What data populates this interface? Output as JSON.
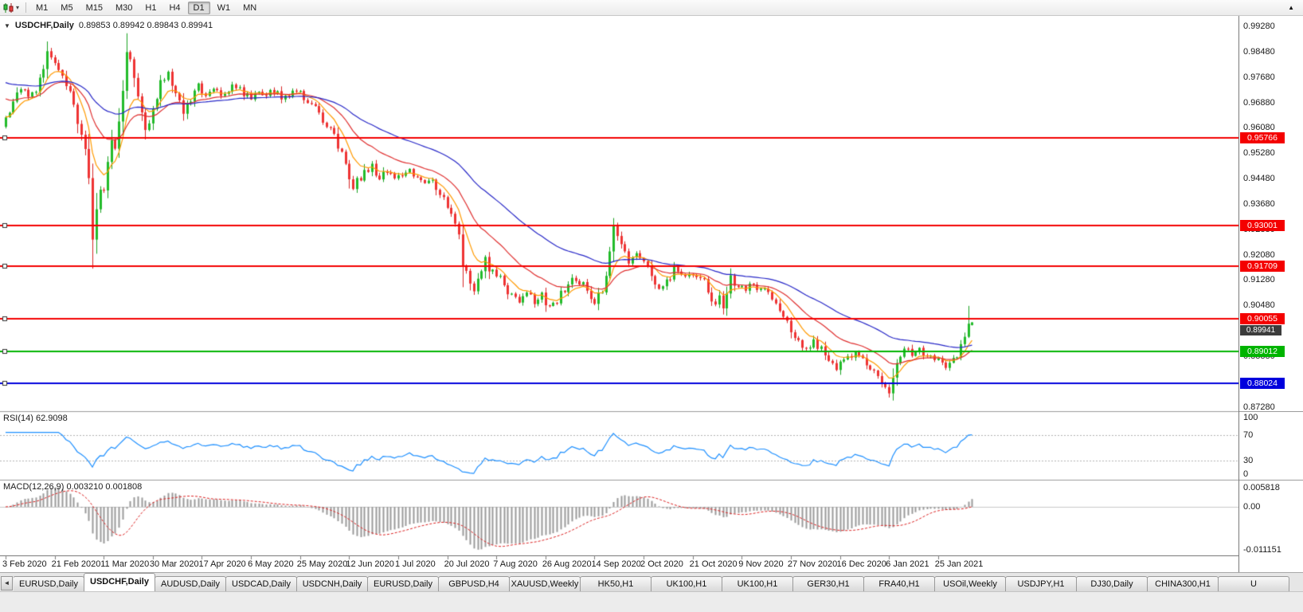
{
  "toolbar": {
    "timeframes": [
      "M1",
      "M5",
      "M15",
      "M30",
      "H1",
      "H4",
      "D1",
      "W1",
      "MN"
    ],
    "active_timeframe": "D1",
    "chart_type_caret": "▾",
    "overflow_icon": "▲"
  },
  "chart": {
    "title": "USDCHF,Daily",
    "ohlc_text": "0.89853 0.89942 0.89843 0.89941",
    "open": "0.89853",
    "high": "0.89942",
    "low": "0.89843",
    "close": "0.89941",
    "collapse_icon": "▼"
  },
  "price_axis": {
    "labels": [
      "0.99280",
      "0.98480",
      "0.97680",
      "0.96880",
      "0.96080",
      "0.95280",
      "0.94480",
      "0.93680",
      "0.92880",
      "0.92080",
      "0.91280",
      "0.90480",
      "0.89680",
      "0.88880",
      "0.88080",
      "0.87280"
    ]
  },
  "hlines": [
    {
      "label": "0.95766",
      "price": 0.95766,
      "color": "#f40000",
      "role": "resistance"
    },
    {
      "label": "0.93001",
      "price": 0.93001,
      "color": "#f40000",
      "role": "resistance"
    },
    {
      "label": "0.91709",
      "price": 0.91709,
      "color": "#f40000",
      "role": "resistance"
    },
    {
      "label": "0.90055",
      "price": 0.90055,
      "color": "#f40000",
      "role": "resistance"
    },
    {
      "label": "0.89012",
      "price": 0.89012,
      "color": "#00b400",
      "role": "support"
    },
    {
      "label": "0.88024",
      "price": 0.88024,
      "color": "#0000dd",
      "role": "support"
    }
  ],
  "bid_tag": {
    "label": "0.89941",
    "price": 0.89941,
    "color": "#3c3c3c"
  },
  "rsi": {
    "label": "RSI(14) 62.9098",
    "period": 14,
    "current": "62.9098",
    "levels": [
      "100",
      "70",
      "30",
      "0"
    ],
    "level_values": [
      100,
      70,
      30,
      0
    ],
    "upper_level": 70,
    "lower_level": 30
  },
  "macd": {
    "label": "MACD(12,26,9) 0.003210 0.001808",
    "current": "0.003210",
    "signal_current": "0.001808",
    "axis_labels": [
      "0.005818",
      "0.00",
      "-0.011151"
    ],
    "axis_values": [
      0.005818,
      0,
      -0.011151
    ]
  },
  "date_axis": {
    "labels": [
      "3 Feb 2020",
      "21 Feb 2020",
      "11 Mar 2020",
      "30 Mar 2020",
      "17 Apr 2020",
      "6 May 2020",
      "25 May 2020",
      "12 Jun 2020",
      "1 Jul 2020",
      "20 Jul 2020",
      "7 Aug 2020",
      "26 Aug 2020",
      "14 Sep 2020",
      "2 Oct 2020",
      "21 Oct 2020",
      "9 Nov 2020",
      "27 Nov 2020",
      "16 Dec 2020",
      "6 Jan 2021",
      "25 Jan 2021"
    ]
  },
  "tab_bar": {
    "scroll_icon": "◄",
    "active_index": 1,
    "tabs": [
      "EURUSD,Daily",
      "USDCHF,Daily",
      "AUDUSD,Daily",
      "USDCAD,Daily",
      "USDCNH,Daily",
      "EURUSD,Daily",
      "GBPUSD,H4",
      "XAUUSD,Weekly",
      "HK50,H1",
      "UK100,H1",
      "UK100,H1",
      "GER30,H1",
      "FRA40,H1",
      "USOil,Weekly",
      "USDJPY,H1",
      "DJ30,Daily",
      "CHINA300,H1",
      "U"
    ]
  },
  "chart_data": {
    "type": "candlestick",
    "symbol": "USDCHF",
    "timeframe": "Daily",
    "price_top": 0.99406,
    "price_bottom": 0.87239,
    "candle_count": 257,
    "close_anchors": [
      [
        0,
        0.9641
      ],
      [
        2,
        0.969
      ],
      [
        4,
        0.9732
      ],
      [
        6,
        0.971
      ],
      [
        8,
        0.9722
      ],
      [
        10,
        0.979
      ],
      [
        11,
        0.9845
      ],
      [
        13,
        0.981
      ],
      [
        15,
        0.9772
      ],
      [
        17,
        0.9722
      ],
      [
        19,
        0.964
      ],
      [
        21,
        0.956
      ],
      [
        22,
        0.945
      ],
      [
        23,
        0.9265
      ],
      [
        24,
        0.9345
      ],
      [
        25,
        0.943
      ],
      [
        26,
        0.939
      ],
      [
        27,
        0.951
      ],
      [
        28,
        0.9555
      ],
      [
        29,
        0.953
      ],
      [
        30,
        0.9625
      ],
      [
        31,
        0.974
      ],
      [
        32,
        0.9872
      ],
      [
        33,
        0.983
      ],
      [
        34,
        0.976
      ],
      [
        35,
        0.97
      ],
      [
        36,
        0.964
      ],
      [
        37,
        0.9595
      ],
      [
        38,
        0.964
      ],
      [
        39,
        0.9685
      ],
      [
        40,
        0.972
      ],
      [
        41,
        0.975
      ],
      [
        43,
        0.978
      ],
      [
        45,
        0.9718
      ],
      [
        47,
        0.9662
      ],
      [
        49,
        0.97
      ],
      [
        51,
        0.9745
      ],
      [
        53,
        0.9705
      ],
      [
        55,
        0.9735
      ],
      [
        57,
        0.9698
      ],
      [
        59,
        0.9718
      ],
      [
        61,
        0.9745
      ],
      [
        63,
        0.9712
      ],
      [
        65,
        0.97
      ],
      [
        67,
        0.973
      ],
      [
        69,
        0.971
      ],
      [
        71,
        0.9728
      ],
      [
        73,
        0.97
      ],
      [
        75,
        0.9718
      ],
      [
        77,
        0.9735
      ],
      [
        79,
        0.9702
      ],
      [
        81,
        0.9688
      ],
      [
        83,
        0.9655
      ],
      [
        85,
        0.9612
      ],
      [
        87,
        0.958
      ],
      [
        89,
        0.9525
      ],
      [
        91,
        0.9455
      ],
      [
        92,
        0.9408
      ],
      [
        93,
        0.9438
      ],
      [
        95,
        0.9465
      ],
      [
        97,
        0.9485
      ],
      [
        99,
        0.9448
      ],
      [
        101,
        0.9468
      ],
      [
        103,
        0.9452
      ],
      [
        105,
        0.9462
      ],
      [
        107,
        0.9475
      ],
      [
        109,
        0.9458
      ],
      [
        111,
        0.9438
      ],
      [
        113,
        0.9448
      ],
      [
        115,
        0.9402
      ],
      [
        117,
        0.9368
      ],
      [
        119,
        0.9312
      ],
      [
        120,
        0.9262
      ],
      [
        121,
        0.9185
      ],
      [
        122,
        0.915
      ],
      [
        123,
        0.9118
      ],
      [
        124,
        0.9102
      ],
      [
        125,
        0.9142
      ],
      [
        127,
        0.9188
      ],
      [
        128,
        0.9165
      ],
      [
        130,
        0.9148
      ],
      [
        132,
        0.9108
      ],
      [
        134,
        0.9075
      ],
      [
        136,
        0.9058
      ],
      [
        138,
        0.9092
      ],
      [
        140,
        0.9052
      ],
      [
        142,
        0.9078
      ],
      [
        144,
        0.9038
      ],
      [
        146,
        0.9065
      ],
      [
        148,
        0.9098
      ],
      [
        150,
        0.9138
      ],
      [
        152,
        0.9122
      ],
      [
        154,
        0.9095
      ],
      [
        156,
        0.9062
      ],
      [
        158,
        0.9098
      ],
      [
        160,
        0.9205
      ],
      [
        161,
        0.9292
      ],
      [
        162,
        0.926
      ],
      [
        163,
        0.9238
      ],
      [
        165,
        0.9192
      ],
      [
        167,
        0.9218
      ],
      [
        169,
        0.9185
      ],
      [
        171,
        0.9145
      ],
      [
        173,
        0.9088
      ],
      [
        175,
        0.9122
      ],
      [
        177,
        0.9162
      ],
      [
        179,
        0.9142
      ],
      [
        181,
        0.9158
      ],
      [
        183,
        0.9148
      ],
      [
        185,
        0.9118
      ],
      [
        187,
        0.9062
      ],
      [
        188,
        0.9042
      ],
      [
        189,
        0.9068
      ],
      [
        190,
        0.9048
      ],
      [
        191,
        0.9098
      ],
      [
        192,
        0.9132
      ],
      [
        194,
        0.9112
      ],
      [
        196,
        0.9098
      ],
      [
        198,
        0.9115
      ],
      [
        200,
        0.9102
      ],
      [
        202,
        0.9088
      ],
      [
        204,
        0.9062
      ],
      [
        206,
        0.9015
      ],
      [
        208,
        0.8968
      ],
      [
        210,
        0.8938
      ],
      [
        212,
        0.8905
      ],
      [
        214,
        0.8938
      ],
      [
        216,
        0.8908
      ],
      [
        218,
        0.8872
      ],
      [
        220,
        0.8852
      ],
      [
        222,
        0.8868
      ],
      [
        224,
        0.8888
      ],
      [
        226,
        0.8898
      ],
      [
        228,
        0.8868
      ],
      [
        230,
        0.8838
      ],
      [
        232,
        0.8802
      ],
      [
        233,
        0.8788
      ],
      [
        234,
        0.8768
      ],
      [
        235,
        0.8818
      ],
      [
        236,
        0.8868
      ],
      [
        238,
        0.8905
      ],
      [
        240,
        0.8892
      ],
      [
        242,
        0.8902
      ],
      [
        244,
        0.8888
      ],
      [
        246,
        0.8878
      ],
      [
        248,
        0.8862
      ],
      [
        250,
        0.8858
      ],
      [
        252,
        0.8892
      ],
      [
        253,
        0.8918
      ],
      [
        254,
        0.8942
      ],
      [
        255,
        0.8998
      ],
      [
        256,
        0.89941
      ]
    ],
    "wick_overrides": [
      {
        "i": 11,
        "high": 0.9856
      },
      {
        "i": 23,
        "low": 0.918
      },
      {
        "i": 32,
        "high": 0.9906
      },
      {
        "i": 121,
        "low": 0.9105
      },
      {
        "i": 161,
        "high": 0.9312
      },
      {
        "i": 234,
        "low": 0.8757
      },
      {
        "i": 255,
        "high": 0.9046
      }
    ],
    "last_candle": {
      "open": 0.89853,
      "high": 0.89942,
      "low": 0.89843,
      "close": 0.89941
    },
    "moving_averages": [
      {
        "period": 8,
        "color": "#ff9a00",
        "seed": null
      },
      {
        "period": 21,
        "color": "#e03030",
        "seed": 0.9705
      },
      {
        "period": 50,
        "color": "#2828c8",
        "seed": 0.9755
      }
    ],
    "levels": [
      0.95766,
      0.93001,
      0.91709,
      0.90055,
      0.89012,
      0.88024
    ],
    "indicators": {
      "rsi": {
        "period": 14,
        "current": 62.9098
      },
      "macd": {
        "fast": 12,
        "slow": 26,
        "signal": 9,
        "current": 0.00321,
        "signal_current": 0.001808
      }
    }
  }
}
